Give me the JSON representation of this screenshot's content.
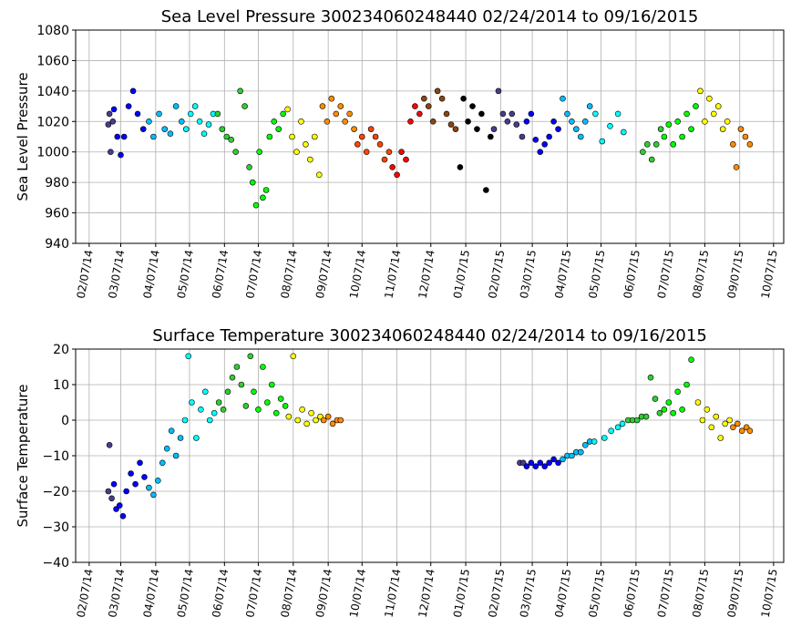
{
  "chart_data": [
    {
      "type": "scatter",
      "title": "Sea Level Pressure 300234060248440  02/24/2014 to 09/16/2015",
      "y_label": "Sea Level Pressure",
      "grid": true,
      "xlim": [
        "2014-01-26",
        "2015-10-16"
      ],
      "ylim": [
        940,
        1080
      ],
      "yticks": [
        940,
        960,
        980,
        1000,
        1020,
        1040,
        1060,
        1080
      ],
      "xticks": [
        {
          "value": "2014-02-07",
          "label": "02/07/14"
        },
        {
          "value": "2014-03-07",
          "label": "03/07/14"
        },
        {
          "value": "2014-04-07",
          "label": "04/07/14"
        },
        {
          "value": "2014-05-07",
          "label": "05/07/14"
        },
        {
          "value": "2014-06-07",
          "label": "06/07/14"
        },
        {
          "value": "2014-07-07",
          "label": "07/07/14"
        },
        {
          "value": "2014-08-07",
          "label": "08/07/14"
        },
        {
          "value": "2014-09-07",
          "label": "09/07/14"
        },
        {
          "value": "2014-10-07",
          "label": "10/07/14"
        },
        {
          "value": "2014-11-07",
          "label": "11/07/14"
        },
        {
          "value": "2014-12-07",
          "label": "12/07/14"
        },
        {
          "value": "2015-01-07",
          "label": "01/07/15"
        },
        {
          "value": "2015-02-07",
          "label": "02/07/15"
        },
        {
          "value": "2015-03-07",
          "label": "03/07/15"
        },
        {
          "value": "2015-04-07",
          "label": "04/07/15"
        },
        {
          "value": "2015-05-07",
          "label": "05/07/15"
        },
        {
          "value": "2015-06-07",
          "label": "06/07/15"
        },
        {
          "value": "2015-07-07",
          "label": "07/07/15"
        },
        {
          "value": "2015-08-07",
          "label": "08/07/15"
        },
        {
          "value": "2015-09-07",
          "label": "09/07/15"
        },
        {
          "value": "2015-10-07",
          "label": "10/07/15"
        }
      ],
      "series": [
        {
          "color": "#483d8b",
          "x": [
            "2014-02-24",
            "2014-02-25",
            "2014-02-26",
            "2014-02-28"
          ],
          "values": [
            1018,
            1025,
            1000,
            1020
          ]
        },
        {
          "color": "#0000ff",
          "x": [
            "2014-03-01",
            "2014-03-04",
            "2014-03-07",
            "2014-03-10",
            "2014-03-14",
            "2014-03-18",
            "2014-03-22",
            "2014-03-27"
          ],
          "values": [
            1028,
            1010,
            998,
            1010,
            1030,
            1040,
            1025,
            1015
          ]
        },
        {
          "color": "#00bfff",
          "x": [
            "2014-04-01",
            "2014-04-05",
            "2014-04-10",
            "2014-04-15",
            "2014-04-20",
            "2014-04-25",
            "2014-04-30"
          ],
          "values": [
            1020,
            1010,
            1025,
            1015,
            1012,
            1030,
            1020
          ]
        },
        {
          "color": "#00ffff",
          "x": [
            "2014-05-04",
            "2014-05-08",
            "2014-05-12",
            "2014-05-16",
            "2014-05-20",
            "2014-05-24",
            "2014-05-28"
          ],
          "values": [
            1015,
            1025,
            1030,
            1020,
            1012,
            1018,
            1025
          ]
        },
        {
          "color": "#32cd32",
          "x": [
            "2014-06-01",
            "2014-06-05",
            "2014-06-09",
            "2014-06-13",
            "2014-06-17",
            "2014-06-21",
            "2014-06-25",
            "2014-06-29"
          ],
          "values": [
            1025,
            1015,
            1010,
            1008,
            1000,
            1040,
            1030,
            990
          ]
        },
        {
          "color": "#00ff00",
          "x": [
            "2014-07-02",
            "2014-07-05",
            "2014-07-08",
            "2014-07-11",
            "2014-07-14",
            "2014-07-17",
            "2014-07-21",
            "2014-07-25",
            "2014-07-29"
          ],
          "values": [
            980,
            965,
            1000,
            970,
            975,
            1010,
            1020,
            1015,
            1025
          ]
        },
        {
          "color": "#ffff00",
          "x": [
            "2014-08-02",
            "2014-08-06",
            "2014-08-10",
            "2014-08-14",
            "2014-08-18",
            "2014-08-22",
            "2014-08-26",
            "2014-08-30"
          ],
          "values": [
            1028,
            1010,
            1000,
            1020,
            1005,
            995,
            1010,
            985
          ]
        },
        {
          "color": "#ff8c00",
          "x": [
            "2014-09-02",
            "2014-09-06",
            "2014-09-10",
            "2014-09-14",
            "2014-09-18",
            "2014-09-22",
            "2014-09-26",
            "2014-09-30"
          ],
          "values": [
            1030,
            1020,
            1035,
            1025,
            1030,
            1020,
            1025,
            1015
          ]
        },
        {
          "color": "#ff4500",
          "x": [
            "2014-10-03",
            "2014-10-07",
            "2014-10-11",
            "2014-10-15",
            "2014-10-19",
            "2014-10-23",
            "2014-10-27",
            "2014-10-31"
          ],
          "values": [
            1005,
            1010,
            1000,
            1015,
            1010,
            1005,
            995,
            1000
          ]
        },
        {
          "color": "#ff0000",
          "x": [
            "2014-11-03",
            "2014-11-07",
            "2014-11-11",
            "2014-11-15",
            "2014-11-19",
            "2014-11-23",
            "2014-11-27"
          ],
          "values": [
            990,
            985,
            1000,
            995,
            1020,
            1030,
            1025
          ]
        },
        {
          "color": "#8b4513",
          "x": [
            "2014-12-01",
            "2014-12-05",
            "2014-12-09",
            "2014-12-13",
            "2014-12-17",
            "2014-12-21",
            "2014-12-25",
            "2014-12-29"
          ],
          "values": [
            1035,
            1030,
            1020,
            1040,
            1035,
            1025,
            1018,
            1015
          ]
        },
        {
          "color": "#000000",
          "x": [
            "2015-01-02",
            "2015-01-05",
            "2015-01-09",
            "2015-01-13",
            "2015-01-17",
            "2015-01-21",
            "2015-01-25",
            "2015-01-29"
          ],
          "values": [
            990,
            1035,
            1020,
            1030,
            1015,
            1025,
            975,
            1010
          ]
        },
        {
          "color": "#483d8b",
          "x": [
            "2015-02-01",
            "2015-02-05",
            "2015-02-09",
            "2015-02-13",
            "2015-02-17",
            "2015-02-21",
            "2015-02-26"
          ],
          "values": [
            1015,
            1040,
            1025,
            1020,
            1025,
            1018,
            1010
          ]
        },
        {
          "color": "#0000ff",
          "x": [
            "2015-03-02",
            "2015-03-06",
            "2015-03-10",
            "2015-03-14",
            "2015-03-18",
            "2015-03-22",
            "2015-03-26",
            "2015-03-30"
          ],
          "values": [
            1020,
            1025,
            1008,
            1000,
            1005,
            1010,
            1020,
            1015
          ]
        },
        {
          "color": "#00bfff",
          "x": [
            "2015-04-03",
            "2015-04-07",
            "2015-04-11",
            "2015-04-15",
            "2015-04-19",
            "2015-04-23",
            "2015-04-27"
          ],
          "values": [
            1035,
            1025,
            1020,
            1015,
            1010,
            1020,
            1030
          ]
        },
        {
          "color": "#00ffff",
          "x": [
            "2015-05-02",
            "2015-05-08",
            "2015-05-15",
            "2015-05-22",
            "2015-05-27"
          ],
          "values": [
            1025,
            1007,
            1017,
            1025,
            1013
          ]
        },
        {
          "color": "#32cd32",
          "x": [
            "2015-06-13",
            "2015-06-17",
            "2015-06-21",
            "2015-06-25",
            "2015-06-29"
          ],
          "values": [
            1000,
            1005,
            995,
            1005,
            1015
          ]
        },
        {
          "color": "#00ff00",
          "x": [
            "2015-07-02",
            "2015-07-06",
            "2015-07-10",
            "2015-07-14",
            "2015-07-18",
            "2015-07-22",
            "2015-07-26",
            "2015-07-30"
          ],
          "values": [
            1010,
            1018,
            1005,
            1020,
            1010,
            1025,
            1015,
            1030
          ]
        },
        {
          "color": "#ffff00",
          "x": [
            "2015-08-03",
            "2015-08-07",
            "2015-08-11",
            "2015-08-15",
            "2015-08-19",
            "2015-08-23",
            "2015-08-27"
          ],
          "values": [
            1040,
            1020,
            1035,
            1025,
            1030,
            1015,
            1020
          ]
        },
        {
          "color": "#ff8c00",
          "x": [
            "2015-09-01",
            "2015-09-04",
            "2015-09-08",
            "2015-09-12",
            "2015-09-16"
          ],
          "values": [
            1005,
            990,
            1015,
            1010,
            1005
          ]
        }
      ]
    },
    {
      "type": "scatter",
      "title": "Surface Temperature 300234060248440  02/24/2014 to 09/16/2015",
      "y_label": "Surface Temperature",
      "grid": true,
      "xlim": [
        "2014-01-26",
        "2015-10-16"
      ],
      "ylim": [
        -40,
        20
      ],
      "yticks": [
        {
          "value": -40,
          "label": "−40"
        },
        {
          "value": -30,
          "label": "−30"
        },
        {
          "value": -20,
          "label": "−20"
        },
        {
          "value": -10,
          "label": "−10"
        },
        0,
        10,
        20
      ],
      "xticks": [
        {
          "value": "2014-02-07",
          "label": "02/07/14"
        },
        {
          "value": "2014-03-07",
          "label": "03/07/14"
        },
        {
          "value": "2014-04-07",
          "label": "04/07/14"
        },
        {
          "value": "2014-05-07",
          "label": "05/07/14"
        },
        {
          "value": "2014-06-07",
          "label": "06/07/14"
        },
        {
          "value": "2014-07-07",
          "label": "07/07/14"
        },
        {
          "value": "2014-08-07",
          "label": "08/07/14"
        },
        {
          "value": "2014-09-07",
          "label": "09/07/14"
        },
        {
          "value": "2014-10-07",
          "label": "10/07/14"
        },
        {
          "value": "2014-11-07",
          "label": "11/07/14"
        },
        {
          "value": "2014-12-07",
          "label": "12/07/14"
        },
        {
          "value": "2015-01-07",
          "label": "01/07/15"
        },
        {
          "value": "2015-02-07",
          "label": "02/07/15"
        },
        {
          "value": "2015-03-07",
          "label": "03/07/15"
        },
        {
          "value": "2015-04-07",
          "label": "04/07/15"
        },
        {
          "value": "2015-05-07",
          "label": "05/07/15"
        },
        {
          "value": "2015-06-07",
          "label": "06/07/15"
        },
        {
          "value": "2015-07-07",
          "label": "07/07/15"
        },
        {
          "value": "2015-08-07",
          "label": "08/07/15"
        },
        {
          "value": "2015-09-07",
          "label": "09/07/15"
        },
        {
          "value": "2015-10-07",
          "label": "10/07/15"
        }
      ],
      "series": [
        {
          "color": "#483d8b",
          "x": [
            "2014-02-24",
            "2014-02-25",
            "2014-02-27"
          ],
          "values": [
            -20,
            -7,
            -22
          ]
        },
        {
          "color": "#0000ff",
          "x": [
            "2014-03-01",
            "2014-03-03",
            "2014-03-06",
            "2014-03-09",
            "2014-03-12",
            "2014-03-16",
            "2014-03-20",
            "2014-03-24",
            "2014-03-28"
          ],
          "values": [
            -18,
            -25,
            -24,
            -27,
            -20,
            -15,
            -18,
            -12,
            -16
          ]
        },
        {
          "color": "#00bfff",
          "x": [
            "2014-04-01",
            "2014-04-05",
            "2014-04-09",
            "2014-04-13",
            "2014-04-17",
            "2014-04-21",
            "2014-04-25",
            "2014-04-29"
          ],
          "values": [
            -19,
            -21,
            -17,
            -12,
            -8,
            -3,
            -10,
            -5
          ]
        },
        {
          "color": "#00ffff",
          "x": [
            "2014-05-03",
            "2014-05-06",
            "2014-05-09",
            "2014-05-13",
            "2014-05-17",
            "2014-05-21",
            "2014-05-25",
            "2014-05-29"
          ],
          "values": [
            0,
            18,
            5,
            -5,
            3,
            8,
            0,
            2
          ]
        },
        {
          "color": "#32cd32",
          "x": [
            "2014-06-02",
            "2014-06-06",
            "2014-06-10",
            "2014-06-14",
            "2014-06-18",
            "2014-06-22",
            "2014-06-26",
            "2014-06-30"
          ],
          "values": [
            5,
            3,
            8,
            12,
            15,
            10,
            4,
            18
          ]
        },
        {
          "color": "#00ff00",
          "x": [
            "2014-07-03",
            "2014-07-07",
            "2014-07-11",
            "2014-07-15",
            "2014-07-19",
            "2014-07-23",
            "2014-07-27",
            "2014-07-31"
          ],
          "values": [
            8,
            3,
            15,
            5,
            10,
            2,
            6,
            4
          ]
        },
        {
          "color": "#ffff00",
          "x": [
            "2014-08-03",
            "2014-08-07",
            "2014-08-11",
            "2014-08-15",
            "2014-08-19",
            "2014-08-23",
            "2014-08-27",
            "2014-08-31"
          ],
          "values": [
            1,
            18,
            0,
            3,
            -1,
            2,
            0,
            1
          ]
        },
        {
          "color": "#ff8c00",
          "x": [
            "2014-09-03",
            "2014-09-07",
            "2014-09-11",
            "2014-09-15",
            "2014-09-18"
          ],
          "values": [
            0,
            1,
            -1,
            0,
            0
          ]
        },
        {
          "color": "#483d8b",
          "x": [
            "2015-02-24",
            "2015-02-27"
          ],
          "values": [
            -12,
            -12
          ]
        },
        {
          "color": "#0000ff",
          "x": [
            "2015-03-02",
            "2015-03-06",
            "2015-03-10",
            "2015-03-14",
            "2015-03-18",
            "2015-03-22",
            "2015-03-26",
            "2015-03-30"
          ],
          "values": [
            -13,
            -12,
            -13,
            -12,
            -13,
            -12,
            -11,
            -12
          ]
        },
        {
          "color": "#00bfff",
          "x": [
            "2015-04-03",
            "2015-04-07",
            "2015-04-11",
            "2015-04-15",
            "2015-04-19",
            "2015-04-23",
            "2015-04-27"
          ],
          "values": [
            -11,
            -10,
            -10,
            -9,
            -9,
            -7,
            -6
          ]
        },
        {
          "color": "#00ffff",
          "x": [
            "2015-05-01",
            "2015-05-10",
            "2015-05-16",
            "2015-05-22",
            "2015-05-26"
          ],
          "values": [
            -6,
            -5,
            -3,
            -2,
            -1
          ]
        },
        {
          "color": "#32cd32",
          "x": [
            "2015-05-31",
            "2015-06-04",
            "2015-06-08",
            "2015-06-12",
            "2015-06-16",
            "2015-06-20",
            "2015-06-24",
            "2015-06-28"
          ],
          "values": [
            0,
            0,
            0,
            1,
            1,
            12,
            6,
            2
          ]
        },
        {
          "color": "#00ff00",
          "x": [
            "2015-07-02",
            "2015-07-06",
            "2015-07-10",
            "2015-07-14",
            "2015-07-18",
            "2015-07-22",
            "2015-07-26"
          ],
          "values": [
            3,
            5,
            2,
            8,
            3,
            10,
            17
          ]
        },
        {
          "color": "#ffff00",
          "x": [
            "2015-08-01",
            "2015-08-05",
            "2015-08-09",
            "2015-08-13",
            "2015-08-17",
            "2015-08-21",
            "2015-08-25",
            "2015-08-29"
          ],
          "values": [
            5,
            0,
            3,
            -2,
            1,
            -5,
            -1,
            0
          ]
        },
        {
          "color": "#ff8c00",
          "x": [
            "2015-09-01",
            "2015-09-05",
            "2015-09-09",
            "2015-09-13",
            "2015-09-16"
          ],
          "values": [
            -2,
            -1,
            -3,
            -2,
            -3
          ]
        }
      ]
    }
  ]
}
